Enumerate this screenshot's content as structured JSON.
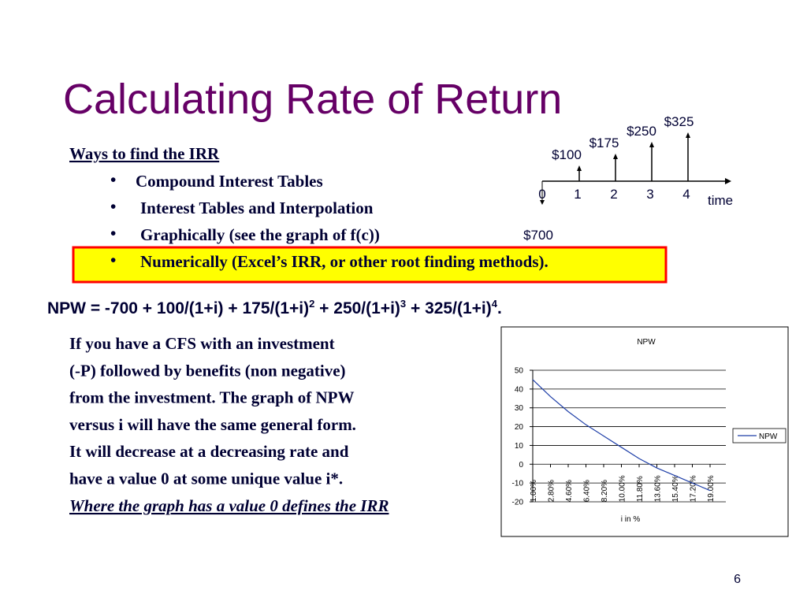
{
  "title": "Calculating Rate of Return",
  "cash_flow": {
    "amounts": [
      "$100",
      "$175",
      "$250",
      "$325",
      "$700"
    ],
    "periods": [
      "0",
      "1",
      "2",
      "3",
      "4"
    ],
    "axis_label": "time"
  },
  "methods": {
    "heading": "Ways to find the IRR",
    "items": [
      "Compound Interest Tables",
      "Interest Tables and Interpolation",
      "Graphically  (see the graph of f(c))",
      "Numerically (Excel’s IRR, or other root finding methods)."
    ]
  },
  "equation": {
    "parts": [
      "NPW = -700 + 100/(1+i) + 175/(1+i)",
      "2",
      " + 250/(1+i)",
      "3",
      " + 325/(1+i)",
      "4",
      "."
    ]
  },
  "explanation": {
    "lines": [
      "If you have a CFS with an investment",
      " (-P) followed by benefits (non negative)",
      "from the investment. The graph of NPW",
      "versus i will have the same general form.",
      "It will decrease at a decreasing rate and",
      "have a value 0 at some unique value i*."
    ],
    "conclusion": "Where the graph has a value 0 defines the IRR"
  },
  "chart_data": {
    "type": "line",
    "title": "NPW",
    "x_label": "i in %",
    "categories": [
      "1.00%",
      "2.80%",
      "4.60%",
      "6.40%",
      "8.20%",
      "10.00%",
      "11.80%",
      "13.60%",
      "15.40%",
      "17.20%",
      "19.00%"
    ],
    "series": [
      {
        "name": "NPW",
        "color": "#1f3fa8",
        "values": [
          45,
          36,
          28,
          21,
          15,
          9,
          3,
          -2,
          -6,
          -10,
          -14
        ]
      }
    ],
    "ylim": [
      -20,
      50
    ],
    "yticks": [
      -20,
      -10,
      0,
      10,
      20,
      30,
      40,
      50
    ],
    "grid": true,
    "legend": "right"
  },
  "page_number": "6"
}
